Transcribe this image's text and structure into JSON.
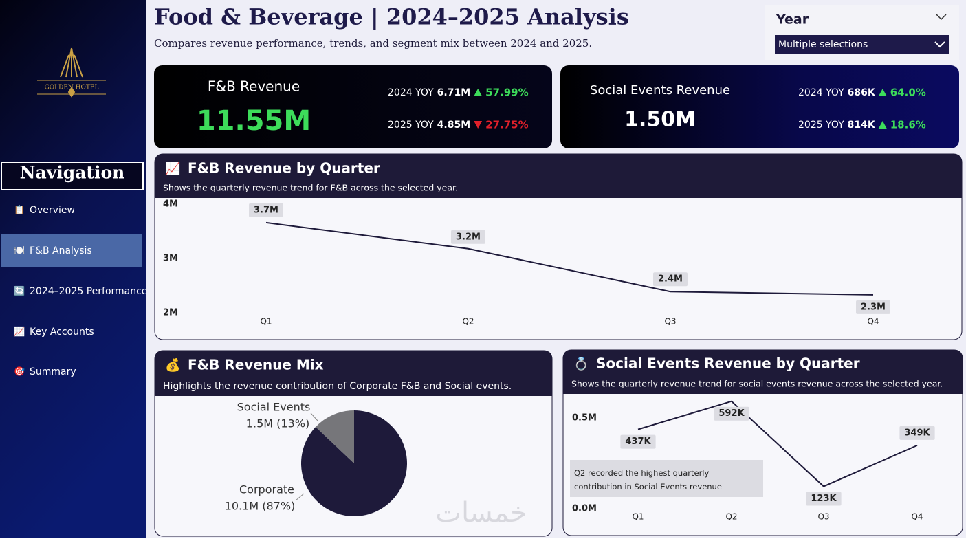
{
  "header": {
    "title": "Food & Beverage | 2024–2025 Analysis",
    "subtitle": "Compares revenue performance, trends, and segment mix between 2024 and 2025."
  },
  "slicer": {
    "label": "Year",
    "value": "Multiple selections"
  },
  "sidebar": {
    "logo": "GOLDEN HOTEL",
    "heading": "Navigation",
    "active": 1,
    "items": [
      {
        "icon": "📋",
        "label": "Overview"
      },
      {
        "icon": "🍽️",
        "label": "F&B Analysis"
      },
      {
        "icon": "🔄",
        "label": "2024–2025 Performance"
      },
      {
        "icon": "📈",
        "label": "Key Accounts"
      },
      {
        "icon": "🎯",
        "label": "Summary"
      }
    ]
  },
  "kpis": [
    {
      "title": "F&B Revenue",
      "value": "11.55M",
      "value_color": "#3ddc5a",
      "rows": [
        {
          "label": "2024 YOY",
          "value": "6.71M",
          "change": "57.99%",
          "direction": "up"
        },
        {
          "label": "2025 YOY",
          "value": "4.85M",
          "change": "27.75%",
          "direction": "down"
        }
      ]
    },
    {
      "title": "Social Events Revenue",
      "value": "1.50M",
      "value_color": "#ffffff",
      "rows": [
        {
          "label": "2024 YOY",
          "value": "686K",
          "change": "64.0%",
          "direction": "up"
        },
        {
          "label": "2025 YOY",
          "value": "814K",
          "change": "18.6%",
          "direction": "up"
        }
      ]
    }
  ],
  "chart_data": [
    {
      "type": "line",
      "icon": "📈",
      "title": "F&B Revenue by Quarter",
      "subtitle": "Shows the quarterly revenue trend for F&B across the selected year.",
      "categories": [
        "Q1",
        "Q2",
        "Q3",
        "Q4"
      ],
      "values": [
        3.66,
        3.18,
        2.39,
        2.33
      ],
      "value_labels": [
        "3.7M",
        "3.2M",
        "2.4M",
        "2.3M"
      ],
      "color": "#1e1a3a",
      "ylim": [
        2,
        4
      ],
      "yticks": [
        {
          "value": 2,
          "label": "2M"
        },
        {
          "value": 3,
          "label": "3M"
        },
        {
          "value": 4,
          "label": "4M"
        }
      ]
    },
    {
      "type": "pie",
      "icon": "💰",
      "title": "F&B Revenue Mix",
      "subtitle": "Highlights the revenue contribution of Corporate F&B and Social events.",
      "categories": [
        "Corporate",
        "Social Events"
      ],
      "values": [
        10.1,
        1.5
      ],
      "value_labels": [
        "10.1M (87%)",
        "1.5M (13%)"
      ],
      "colors": [
        "#1e1a3a",
        "#76767a"
      ]
    },
    {
      "type": "line",
      "icon": "💍",
      "title": "Social Events Revenue by Quarter",
      "subtitle": "Shows the quarterly revenue trend for social events revenue across the selected year.",
      "categories": [
        "Q1",
        "Q2",
        "Q3",
        "Q4"
      ],
      "values": [
        0.437,
        0.592,
        0.123,
        0.349
      ],
      "value_labels": [
        "437K",
        "592K",
        "123K",
        "349K"
      ],
      "color": "#1e1a3a",
      "ylim": [
        0,
        0.6
      ],
      "yticks": [
        {
          "value": 0,
          "label": "0.0M"
        },
        {
          "value": 0.5,
          "label": "0.5M"
        }
      ],
      "annotation": "Q2 recorded the highest quarterly contribution in Social Events revenue"
    }
  ],
  "watermark": "خمسات"
}
